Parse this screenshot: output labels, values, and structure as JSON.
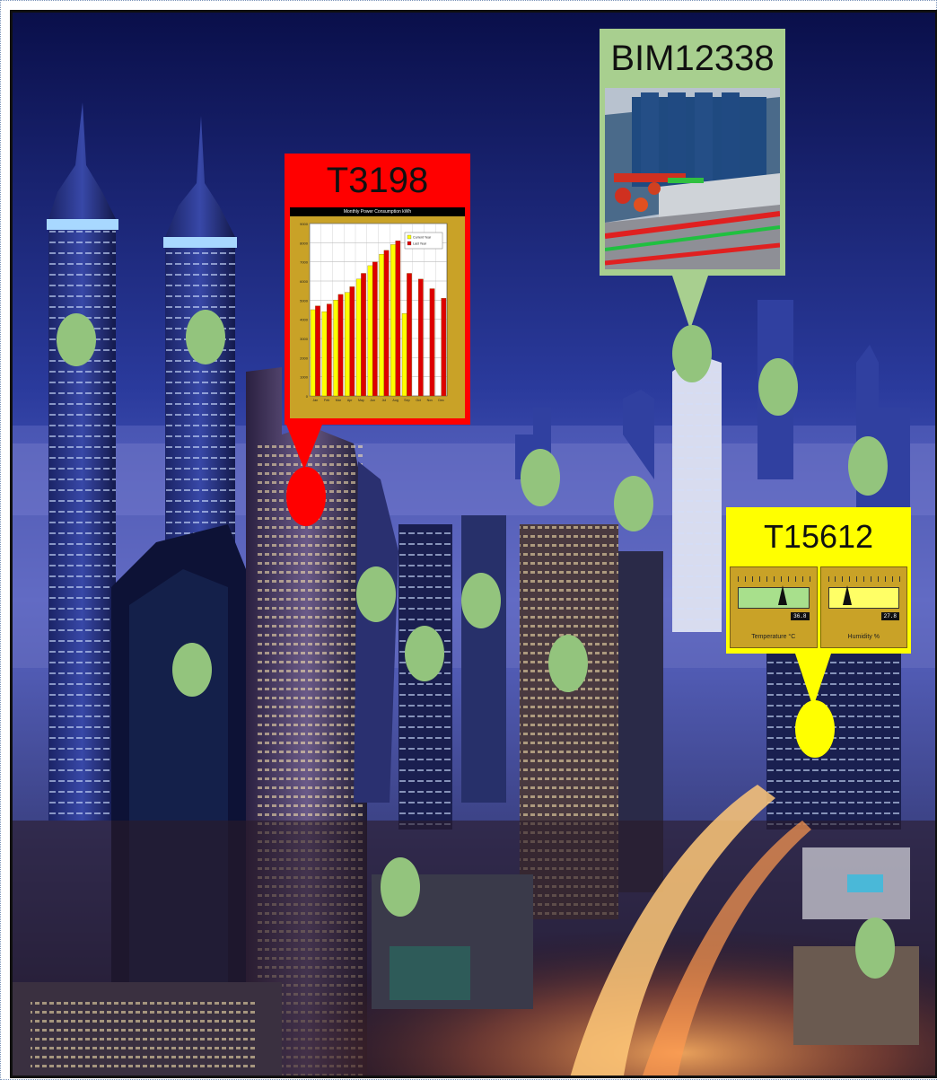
{
  "callouts": {
    "t3198": {
      "title": "T3198",
      "color": "#ff0000",
      "chart_title": "Monthly Power Consumption kWh",
      "legend": [
        "Current Year",
        "Last Year"
      ]
    },
    "bim": {
      "title": "BIM12338",
      "color": "#a8cf8f"
    },
    "t15612": {
      "title": "T15612",
      "color": "#ffff00",
      "gauges": [
        {
          "label": "Temperature °C",
          "value": "36.8",
          "level": 0.62,
          "scale_color": "#a8e08c"
        },
        {
          "label": "Humidity %",
          "value": "27.8",
          "level": 0.27,
          "scale_color": "#ffff66"
        }
      ]
    }
  },
  "markers": {
    "green_color": "#93c47d",
    "count_green": 17,
    "alert_colors": [
      "#ff0000",
      "#ffff00"
    ]
  },
  "chart_data": {
    "type": "bar",
    "title": "Monthly Power Consumption kWh",
    "categories": [
      "Jan",
      "Feb",
      "Mar",
      "Apr",
      "May",
      "Jun",
      "Jul",
      "Aug",
      "Sep",
      "Oct",
      "Nov",
      "Dec"
    ],
    "series": [
      {
        "name": "Current Year",
        "color": "#ffff00",
        "values": [
          4500,
          4400,
          5000,
          5400,
          6100,
          6800,
          7400,
          7900,
          4300,
          null,
          null,
          null
        ]
      },
      {
        "name": "Last Year",
        "color": "#dd0000",
        "values": [
          4700,
          4800,
          5300,
          5700,
          6400,
          7000,
          7600,
          8100,
          6400,
          6100,
          5600,
          5100
        ]
      }
    ],
    "ylim": [
      0,
      9000
    ]
  }
}
